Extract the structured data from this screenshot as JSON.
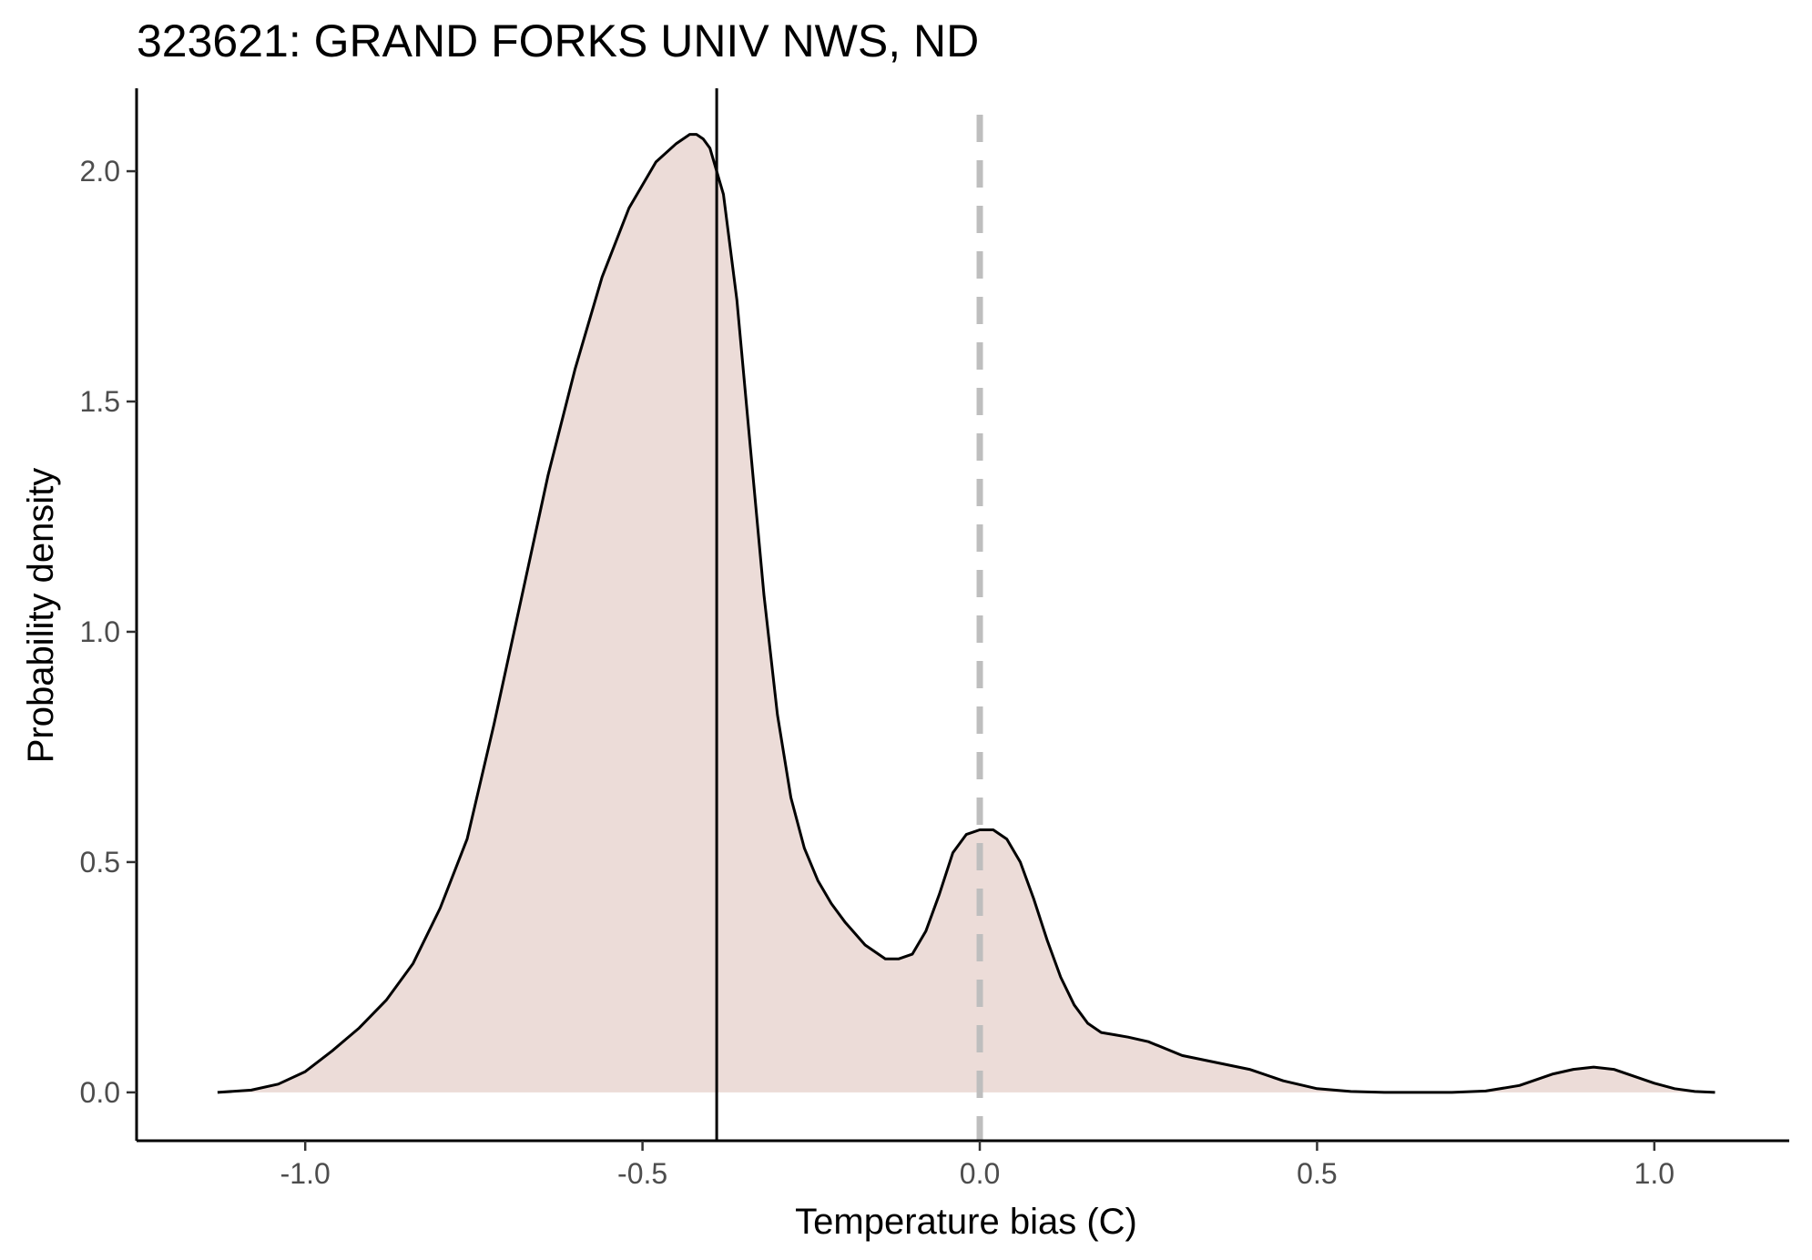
{
  "chart_data": {
    "type": "area",
    "title": "323621: GRAND FORKS UNIV NWS, ND",
    "xlabel": "Temperature bias (C)",
    "ylabel": "Probability density",
    "xlim": [
      -1.25,
      1.2
    ],
    "ylim": [
      -0.105,
      2.18
    ],
    "x_ticks": [
      -1.0,
      -0.5,
      0.0,
      0.5,
      1.0
    ],
    "x_tick_labels": [
      "-1.0",
      "-0.5",
      "0.0",
      "0.5",
      "1.0"
    ],
    "y_ticks": [
      0.0,
      0.5,
      1.0,
      1.5,
      2.0
    ],
    "y_tick_labels": [
      "0.0",
      "0.5",
      "1.0",
      "1.5",
      "2.0"
    ],
    "grid": false,
    "legend": "none",
    "colors": {
      "fill": "#ecdcd8",
      "curve": "#000000",
      "reference_line": "#bebebe",
      "axis": "#000000"
    },
    "series": [
      {
        "x": [
          -1.13,
          -1.08,
          -1.04,
          -1.0,
          -0.96,
          -0.92,
          -0.88,
          -0.84,
          -0.8,
          -0.76,
          -0.72,
          -0.68,
          -0.64,
          -0.6,
          -0.56,
          -0.52,
          -0.48,
          -0.45,
          -0.43,
          -0.42,
          -0.41,
          -0.4,
          -0.38,
          -0.36,
          -0.34,
          -0.32,
          -0.3,
          -0.28,
          -0.26,
          -0.24,
          -0.22,
          -0.2,
          -0.17,
          -0.14,
          -0.12,
          -0.1,
          -0.08,
          -0.06,
          -0.04,
          -0.02,
          0.0,
          0.02,
          0.04,
          0.06,
          0.08,
          0.1,
          0.12,
          0.14,
          0.16,
          0.18,
          0.2,
          0.22,
          0.25,
          0.3,
          0.35,
          0.4,
          0.45,
          0.5,
          0.55,
          0.6,
          0.65,
          0.7,
          0.75,
          0.8,
          0.85,
          0.88,
          0.91,
          0.94,
          0.97,
          1.0,
          1.03,
          1.06,
          1.09
        ],
        "y": [
          0.0,
          0.005,
          0.018,
          0.045,
          0.09,
          0.14,
          0.2,
          0.28,
          0.4,
          0.55,
          0.8,
          1.07,
          1.34,
          1.57,
          1.77,
          1.92,
          2.02,
          2.06,
          2.08,
          2.08,
          2.07,
          2.05,
          1.95,
          1.72,
          1.4,
          1.08,
          0.82,
          0.64,
          0.53,
          0.46,
          0.41,
          0.37,
          0.32,
          0.29,
          0.29,
          0.3,
          0.35,
          0.43,
          0.52,
          0.56,
          0.57,
          0.57,
          0.55,
          0.5,
          0.42,
          0.33,
          0.25,
          0.19,
          0.15,
          0.13,
          0.125,
          0.12,
          0.11,
          0.08,
          0.065,
          0.05,
          0.025,
          0.008,
          0.002,
          0.0,
          0.0,
          0.0,
          0.003,
          0.015,
          0.04,
          0.05,
          0.055,
          0.05,
          0.035,
          0.02,
          0.008,
          0.002,
          0.0
        ]
      }
    ],
    "vertical_lines": [
      {
        "x": -0.39,
        "style": "solid"
      },
      {
        "x": 0.0,
        "style": "dashed"
      }
    ]
  }
}
